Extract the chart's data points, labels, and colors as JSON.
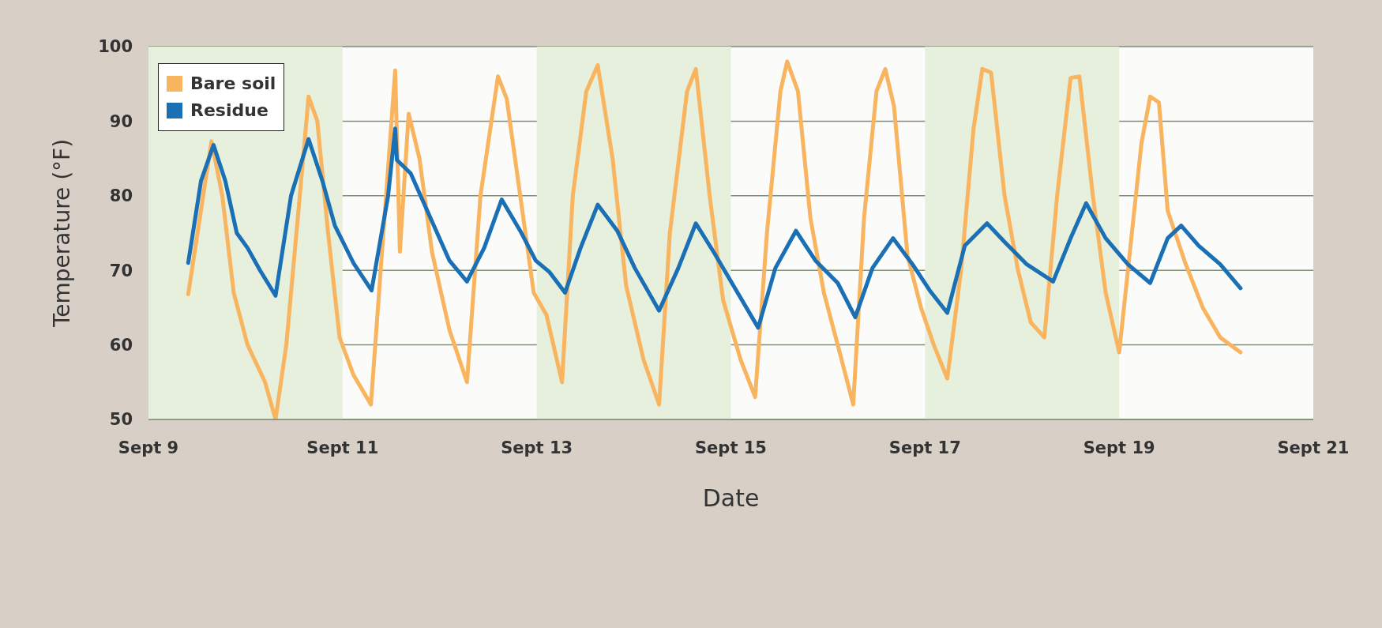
{
  "chart_data": {
    "type": "line",
    "xlabel": "Date",
    "ylabel": "Temperature (°F)",
    "xlim": [
      "--09-09",
      "--09-21"
    ],
    "xticks": [
      {
        "value": "--09-09",
        "label": "Sept 9"
      },
      {
        "value": "--09-11",
        "label": "Sept 11"
      },
      {
        "value": "--09-13",
        "label": "Sept 13"
      },
      {
        "value": "--09-15",
        "label": "Sept 15"
      },
      {
        "value": "--09-17",
        "label": "Sept 17"
      },
      {
        "value": "--09-19",
        "label": "Sept 19"
      },
      {
        "value": "--09-21",
        "label": "Sept 21"
      }
    ],
    "ylim": [
      50,
      100
    ],
    "yticks": [
      50,
      60,
      70,
      80,
      90,
      100
    ],
    "grid": "y",
    "legend": "top left",
    "marker": "none",
    "line_style": "solid",
    "bands": [
      {
        "axis": "x",
        "from": "--09-09",
        "to": "--09-11",
        "color": "#e6f0dc"
      },
      {
        "axis": "x",
        "from": "--09-13",
        "to": "--09-15",
        "color": "#e6f0dc"
      },
      {
        "axis": "x",
        "from": "--09-17",
        "to": "--09-19",
        "color": "#e6f0dc"
      }
    ],
    "series": [
      {
        "name": "Bare soil",
        "color": "#f8b45f",
        "x": [
          "--09-09T09:50",
          "--09-09T15:35",
          "--09-09T18:15",
          "--09-09T21:05",
          "--09-10T00:30",
          "--09-10T04:50",
          "--09-10T07:25",
          "--09-10T10:05",
          "--09-10T13:25",
          "--09-10T15:35",
          "--09-10T17:45",
          "--09-10T20:25",
          "--09-10T23:15",
          "--09-11T02:40",
          "--09-11T07:00",
          "--09-11T10:05",
          "--09-11T13:00",
          "--09-11T14:10",
          "--09-11T16:20",
          "--09-11T19:00",
          "--09-11T22:05",
          "--09-12T02:25",
          "--09-12T06:45",
          "--09-12T10:05",
          "--09-12T14:25",
          "--09-12T16:35",
          "--09-12T19:55",
          "--09-12T23:15",
          "--09-13T02:25",
          "--09-13T06:15",
          "--09-13T08:55",
          "--09-13T12:15",
          "--09-13T15:05",
          "--09-13T18:45",
          "--09-13T22:05",
          "--09-14T02:25",
          "--09-14T06:15",
          "--09-14T08:55",
          "--09-14T13:10",
          "--09-14T15:20",
          "--09-14T18:45",
          "--09-14T22:05",
          "--09-15T02:25",
          "--09-15T06:00",
          "--09-15T08:55",
          "--09-15T12:15",
          "--09-15T13:55",
          "--09-15T16:35",
          "--09-15T19:40",
          "--09-15T23:00",
          "--09-16T02:25",
          "--09-16T06:15",
          "--09-16T08:55",
          "--09-16T12:00",
          "--09-16T14:10",
          "--09-16T16:20",
          "--09-16T19:40",
          "--09-16T23:00",
          "--09-17T02:10",
          "--09-17T05:30",
          "--09-17T08:55",
          "--09-17T12:00",
          "--09-17T14:10",
          "--09-17T16:20",
          "--09-17T19:40",
          "--09-17T23:00",
          "--09-18T02:10",
          "--09-18T05:30",
          "--09-18T08:40",
          "--09-18T12:00",
          "--09-18T14:10",
          "--09-18T17:30",
          "--09-18T20:40",
          "--09-19T00:00",
          "--09-19T02:10",
          "--09-19T05:30",
          "--09-19T07:40",
          "--09-19T09:50",
          "--09-19T12:00",
          "--09-19T16:20",
          "--09-19T20:40",
          "--09-20T01:00",
          "--09-20T06:00"
        ],
        "values": [
          66.8,
          87.3,
          80,
          67,
          60,
          55,
          50,
          60,
          80,
          93.3,
          90,
          75,
          61,
          56,
          52,
          75,
          96.8,
          72.5,
          91,
          85,
          72.5,
          62,
          55,
          80,
          96,
          93,
          80,
          67,
          64,
          55,
          80,
          94,
          97.5,
          85,
          68,
          58,
          52,
          75,
          94,
          97,
          80,
          66,
          58,
          53,
          75,
          94,
          98,
          94,
          77,
          67,
          60,
          52,
          77,
          94,
          97,
          92,
          72,
          65,
          60,
          55.5,
          70,
          89,
          97,
          96.5,
          80,
          70,
          63,
          61,
          80,
          95.8,
          96,
          80,
          67,
          59,
          70,
          87,
          93.3,
          92.5,
          78,
          71,
          65,
          61,
          59
        ]
      },
      {
        "name": "Residue",
        "color": "#1a6fb5",
        "x": [
          "--09-09T09:50",
          "--09-09T13:00",
          "--09-09T16:05",
          "--09-09T19:00",
          "--09-09T21:50",
          "--09-10T00:30",
          "--09-10T03:35",
          "--09-10T07:25",
          "--09-10T11:15",
          "--09-10T15:35",
          "--09-10T19:00",
          "--09-10T22:05",
          "--09-11T02:40",
          "--09-11T07:10",
          "--09-11T11:15",
          "--09-11T13:00",
          "--09-11T13:25",
          "--09-11T16:50",
          "--09-11T21:05",
          "--09-12T02:25",
          "--09-12T06:45",
          "--09-12T11:00",
          "--09-12T15:20",
          "--09-12T19:55",
          "--09-12T23:45",
          "--09-13T03:05",
          "--09-13T07:00",
          "--09-13T10:50",
          "--09-13T15:05",
          "--09-13T19:55",
          "--09-14T00:15",
          "--09-14T06:15",
          "--09-14T11:00",
          "--09-14T15:20",
          "--09-14T19:55",
          "--09-15T00:15",
          "--09-15T06:45",
          "--09-15T11:00",
          "--09-15T16:05",
          "--09-15T20:55",
          "--09-16T02:25",
          "--09-16T06:45",
          "--09-16T11:00",
          "--09-16T16:05",
          "--09-16T20:55",
          "--09-17T01:10",
          "--09-17T05:30",
          "--09-17T09:50",
          "--09-17T15:20",
          "--09-17T19:40",
          "--09-18T01:10",
          "--09-18T07:40",
          "--09-18T12:00",
          "--09-18T15:50",
          "--09-18T20:40",
          "--09-19T02:10",
          "--09-19T07:40",
          "--09-19T12:00",
          "--09-19T15:20",
          "--09-19T19:40",
          "--09-20T01:00",
          "--09-20T06:00"
        ],
        "values": [
          71,
          82,
          86.8,
          82,
          75,
          73,
          70,
          66.6,
          80,
          87.6,
          82,
          76,
          71,
          67.3,
          80,
          89,
          84.8,
          83,
          77.8,
          71.3,
          68.5,
          73,
          79.5,
          75.3,
          71.3,
          69.8,
          67,
          73,
          78.8,
          75.3,
          70.3,
          64.6,
          70.3,
          76.3,
          72.3,
          68.3,
          62.3,
          70.3,
          75.3,
          71.3,
          68.3,
          63.7,
          70.3,
          74.3,
          70.8,
          67.3,
          64.3,
          73.3,
          76.3,
          73.8,
          70.8,
          68.5,
          74.3,
          79,
          74.3,
          70.8,
          68.3,
          74.3,
          76,
          73.3,
          70.8,
          67.6
        ]
      }
    ]
  }
}
